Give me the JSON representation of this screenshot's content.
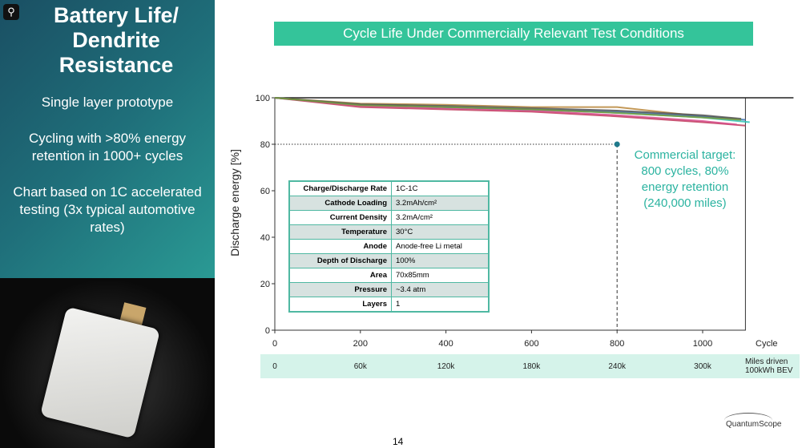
{
  "slide": {
    "title": "Battery Life/ Dendrite Resistance",
    "bullets": [
      "Single layer prototype",
      "Cycling with >80% energy retention in 1000+ cycles",
      "Chart based on 1C accelerated testing (3x typical automotive rates)"
    ],
    "page_number": "14",
    "logo": "QuantumScope",
    "zoom_icon": "magnifier-icon"
  },
  "chart_data": {
    "type": "line",
    "title": "Cycle Life Under Commercially Relevant Test Conditions",
    "xlabel": "Cycle",
    "ylabel": "Discharge energy [%]",
    "xlim": [
      0,
      1100
    ],
    "ylim": [
      0,
      100
    ],
    "xticks": [
      0,
      200,
      400,
      600,
      800,
      1000
    ],
    "yticks": [
      0,
      20,
      40,
      60,
      80,
      100
    ],
    "secondary_axis": {
      "label": "Miles driven 100kWh BEV",
      "ticks": [
        "0",
        "60k",
        "120k",
        "180k",
        "240k",
        "300k"
      ]
    },
    "target": {
      "x": 800,
      "y": 80,
      "annotation": "Commercial target: 800 cycles, 80% energy retention (240,000 miles)"
    },
    "series": [
      {
        "color": "#c0395a",
        "x": [
          0,
          200,
          400,
          600,
          800,
          1000,
          1100
        ],
        "y": [
          100,
          96,
          95,
          94,
          92,
          89.5,
          88
        ]
      },
      {
        "color": "#d64a8a",
        "x": [
          0,
          200,
          400,
          600,
          800,
          1000,
          1080
        ],
        "y": [
          100,
          96.5,
          95.5,
          94.5,
          92.5,
          90,
          88.5
        ]
      },
      {
        "color": "#b8863a",
        "x": [
          0,
          200,
          400,
          600,
          800,
          1000,
          1080
        ],
        "y": [
          100,
          97.5,
          97,
          96,
          96,
          92,
          91
        ]
      },
      {
        "color": "#2ec4b6",
        "x": [
          0,
          200,
          400,
          600,
          800,
          1000,
          1110
        ],
        "y": [
          100,
          97,
          96,
          95,
          93.5,
          91.5,
          89.5
        ]
      },
      {
        "color": "#3a6fb0",
        "x": [
          0,
          200,
          400,
          600,
          800,
          1000,
          1100
        ],
        "y": [
          100,
          97,
          96,
          95,
          94,
          92,
          90.5
        ]
      },
      {
        "color": "#555555",
        "x": [
          0,
          200,
          400,
          600,
          800,
          1000,
          1090
        ],
        "y": [
          100,
          97.2,
          96.5,
          95.5,
          94.5,
          92.5,
          91
        ]
      },
      {
        "color": "#7a9a3a",
        "x": [
          0,
          200,
          400,
          600,
          800,
          1000,
          1090
        ],
        "y": [
          100,
          96.8,
          96,
          95,
          93.5,
          91.5,
          90.5
        ]
      }
    ]
  },
  "params": [
    [
      "Charge/Discharge Rate",
      "1C-1C"
    ],
    [
      "Cathode Loading",
      "3.2mAh/cm²"
    ],
    [
      "Current Density",
      "3.2mA/cm²"
    ],
    [
      "Temperature",
      "30°C"
    ],
    [
      "Anode",
      "Anode-free Li metal"
    ],
    [
      "Depth of Discharge",
      "100%"
    ],
    [
      "Area",
      "70x85mm"
    ],
    [
      "Pressure",
      "~3.4 atm"
    ],
    [
      "Layers",
      "1"
    ]
  ]
}
